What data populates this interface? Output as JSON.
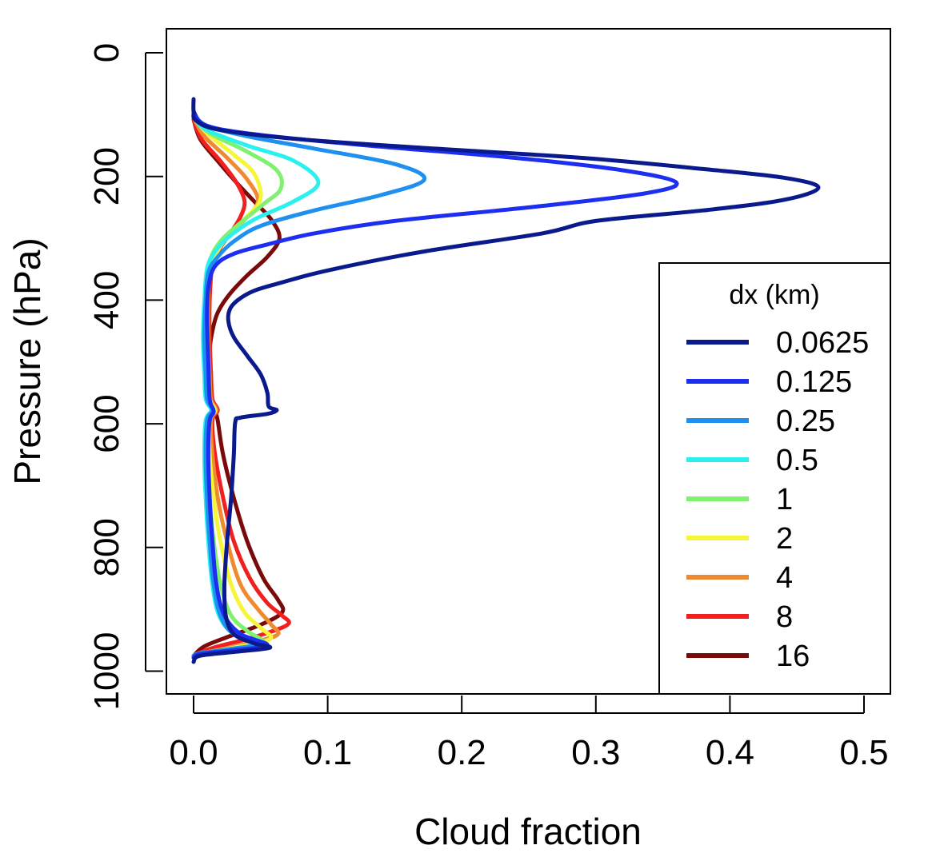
{
  "chart_data": {
    "type": "line",
    "title": "",
    "xlabel": "Cloud fraction",
    "ylabel": "Pressure (hPa)",
    "xlim": [
      -0.02,
      0.52
    ],
    "ylim": [
      1040,
      -5
    ],
    "y_reversed": true,
    "x_ticks": [
      0.0,
      0.1,
      0.2,
      0.3,
      0.4,
      0.5
    ],
    "x_tick_labels": [
      "0.0",
      "0.1",
      "0.2",
      "0.3",
      "0.4",
      "0.5"
    ],
    "y_ticks": [
      0,
      200,
      400,
      600,
      800,
      1000
    ],
    "y_tick_labels": [
      "0",
      "200",
      "400",
      "600",
      "800",
      "1000"
    ],
    "grid": false,
    "legend": {
      "title": "dx (km)",
      "placement": "right"
    },
    "series": [
      {
        "name": "0.0625",
        "color": "#0a1a8c",
        "points": [
          [
            0.0,
            75
          ],
          [
            0.0,
            95
          ],
          [
            0.002,
            110
          ],
          [
            0.02,
            125
          ],
          [
            0.08,
            140
          ],
          [
            0.18,
            155
          ],
          [
            0.29,
            170
          ],
          [
            0.38,
            188
          ],
          [
            0.44,
            202
          ],
          [
            0.466,
            218
          ],
          [
            0.44,
            238
          ],
          [
            0.38,
            255
          ],
          [
            0.3,
            272
          ],
          [
            0.26,
            292
          ],
          [
            0.17,
            322
          ],
          [
            0.1,
            352
          ],
          [
            0.065,
            372
          ],
          [
            0.045,
            385
          ],
          [
            0.033,
            400
          ],
          [
            0.027,
            415
          ],
          [
            0.026,
            435
          ],
          [
            0.03,
            460
          ],
          [
            0.04,
            490
          ],
          [
            0.05,
            520
          ],
          [
            0.055,
            550
          ],
          [
            0.056,
            572
          ],
          [
            0.062,
            578
          ],
          [
            0.055,
            584
          ],
          [
            0.035,
            590
          ],
          [
            0.031,
            598
          ],
          [
            0.03,
            650
          ],
          [
            0.028,
            720
          ],
          [
            0.025,
            790
          ],
          [
            0.023,
            860
          ],
          [
            0.024,
            910
          ],
          [
            0.03,
            940
          ],
          [
            0.045,
            955
          ],
          [
            0.057,
            962
          ],
          [
            0.035,
            968
          ],
          [
            0.005,
            975
          ],
          [
            0.0,
            985
          ]
        ]
      },
      {
        "name": "0.125",
        "color": "#1c2ef0",
        "points": [
          [
            0.0,
            95
          ],
          [
            0.01,
            118
          ],
          [
            0.05,
            133
          ],
          [
            0.13,
            150
          ],
          [
            0.24,
            170
          ],
          [
            0.32,
            190
          ],
          [
            0.36,
            210
          ],
          [
            0.335,
            228
          ],
          [
            0.25,
            250
          ],
          [
            0.15,
            272
          ],
          [
            0.09,
            292
          ],
          [
            0.055,
            310
          ],
          [
            0.03,
            325
          ],
          [
            0.016,
            345
          ],
          [
            0.011,
            380
          ],
          [
            0.01,
            430
          ],
          [
            0.011,
            500
          ],
          [
            0.012,
            560
          ],
          [
            0.015,
            580
          ],
          [
            0.012,
            595
          ],
          [
            0.011,
            650
          ],
          [
            0.012,
            720
          ],
          [
            0.014,
            790
          ],
          [
            0.017,
            860
          ],
          [
            0.023,
            910
          ],
          [
            0.035,
            940
          ],
          [
            0.055,
            958
          ],
          [
            0.03,
            966
          ],
          [
            0.005,
            972
          ],
          [
            0.0,
            978
          ]
        ]
      },
      {
        "name": "0.25",
        "color": "#1f8ff0",
        "points": [
          [
            0.0,
            100
          ],
          [
            0.01,
            118
          ],
          [
            0.04,
            135
          ],
          [
            0.09,
            155
          ],
          [
            0.15,
            180
          ],
          [
            0.172,
            205
          ],
          [
            0.14,
            230
          ],
          [
            0.09,
            255
          ],
          [
            0.05,
            280
          ],
          [
            0.03,
            305
          ],
          [
            0.018,
            330
          ],
          [
            0.011,
            355
          ],
          [
            0.009,
            400
          ],
          [
            0.008,
            460
          ],
          [
            0.009,
            520
          ],
          [
            0.01,
            560
          ],
          [
            0.014,
            578
          ],
          [
            0.01,
            595
          ],
          [
            0.009,
            650
          ],
          [
            0.01,
            720
          ],
          [
            0.012,
            790
          ],
          [
            0.015,
            860
          ],
          [
            0.02,
            910
          ],
          [
            0.03,
            940
          ],
          [
            0.05,
            955
          ],
          [
            0.025,
            965
          ],
          [
            0.003,
            972
          ],
          [
            0.0,
            978
          ]
        ]
      },
      {
        "name": "0.5",
        "color": "#2bf0f0",
        "points": [
          [
            0.0,
            105
          ],
          [
            0.01,
            125
          ],
          [
            0.04,
            150
          ],
          [
            0.075,
            175
          ],
          [
            0.093,
            210
          ],
          [
            0.075,
            240
          ],
          [
            0.045,
            270
          ],
          [
            0.025,
            300
          ],
          [
            0.015,
            325
          ],
          [
            0.01,
            350
          ],
          [
            0.008,
            400
          ],
          [
            0.007,
            460
          ],
          [
            0.008,
            520
          ],
          [
            0.009,
            560
          ],
          [
            0.013,
            578
          ],
          [
            0.009,
            595
          ],
          [
            0.008,
            650
          ],
          [
            0.009,
            720
          ],
          [
            0.011,
            790
          ],
          [
            0.014,
            860
          ],
          [
            0.019,
            910
          ],
          [
            0.03,
            940
          ],
          [
            0.05,
            955
          ],
          [
            0.025,
            965
          ],
          [
            0.003,
            972
          ],
          [
            0.0,
            978
          ]
        ]
      },
      {
        "name": "1",
        "color": "#80f070",
        "points": [
          [
            0.0,
            105
          ],
          [
            0.012,
            130
          ],
          [
            0.04,
            160
          ],
          [
            0.062,
            190
          ],
          [
            0.065,
            220
          ],
          [
            0.052,
            245
          ],
          [
            0.035,
            275
          ],
          [
            0.022,
            300
          ],
          [
            0.014,
            325
          ],
          [
            0.01,
            355
          ],
          [
            0.009,
            400
          ],
          [
            0.009,
            460
          ],
          [
            0.01,
            520
          ],
          [
            0.011,
            560
          ],
          [
            0.015,
            578
          ],
          [
            0.011,
            595
          ],
          [
            0.01,
            650
          ],
          [
            0.012,
            720
          ],
          [
            0.015,
            790
          ],
          [
            0.02,
            860
          ],
          [
            0.028,
            910
          ],
          [
            0.04,
            935
          ],
          [
            0.052,
            955
          ],
          [
            0.025,
            965
          ],
          [
            0.003,
            972
          ],
          [
            0.0,
            978
          ]
        ]
      },
      {
        "name": "2",
        "color": "#f5f53a",
        "points": [
          [
            0.0,
            105
          ],
          [
            0.01,
            130
          ],
          [
            0.03,
            165
          ],
          [
            0.045,
            195
          ],
          [
            0.05,
            235
          ],
          [
            0.04,
            265
          ],
          [
            0.028,
            290
          ],
          [
            0.018,
            320
          ],
          [
            0.012,
            350
          ],
          [
            0.01,
            400
          ],
          [
            0.01,
            460
          ],
          [
            0.011,
            520
          ],
          [
            0.012,
            560
          ],
          [
            0.016,
            578
          ],
          [
            0.012,
            595
          ],
          [
            0.012,
            650
          ],
          [
            0.015,
            720
          ],
          [
            0.02,
            790
          ],
          [
            0.028,
            860
          ],
          [
            0.038,
            905
          ],
          [
            0.05,
            930
          ],
          [
            0.057,
            948
          ],
          [
            0.03,
            962
          ],
          [
            0.004,
            972
          ],
          [
            0.0,
            978
          ]
        ]
      },
      {
        "name": "4",
        "color": "#f08a30",
        "points": [
          [
            0.0,
            105
          ],
          [
            0.008,
            135
          ],
          [
            0.025,
            170
          ],
          [
            0.04,
            205
          ],
          [
            0.048,
            240
          ],
          [
            0.038,
            270
          ],
          [
            0.026,
            295
          ],
          [
            0.017,
            320
          ],
          [
            0.012,
            350
          ],
          [
            0.011,
            400
          ],
          [
            0.011,
            460
          ],
          [
            0.012,
            520
          ],
          [
            0.013,
            560
          ],
          [
            0.017,
            578
          ],
          [
            0.013,
            595
          ],
          [
            0.014,
            650
          ],
          [
            0.018,
            720
          ],
          [
            0.025,
            790
          ],
          [
            0.035,
            860
          ],
          [
            0.048,
            900
          ],
          [
            0.058,
            925
          ],
          [
            0.062,
            942
          ],
          [
            0.035,
            958
          ],
          [
            0.005,
            972
          ],
          [
            0.0,
            978
          ]
        ]
      },
      {
        "name": "8",
        "color": "#f02020",
        "points": [
          [
            0.0,
            108
          ],
          [
            0.006,
            140
          ],
          [
            0.02,
            175
          ],
          [
            0.032,
            210
          ],
          [
            0.038,
            240
          ],
          [
            0.035,
            265
          ],
          [
            0.028,
            290
          ],
          [
            0.02,
            315
          ],
          [
            0.014,
            345
          ],
          [
            0.012,
            400
          ],
          [
            0.012,
            460
          ],
          [
            0.013,
            520
          ],
          [
            0.014,
            560
          ],
          [
            0.018,
            578
          ],
          [
            0.014,
            595
          ],
          [
            0.016,
            650
          ],
          [
            0.022,
            720
          ],
          [
            0.03,
            790
          ],
          [
            0.042,
            850
          ],
          [
            0.055,
            890
          ],
          [
            0.066,
            910
          ],
          [
            0.07,
            925
          ],
          [
            0.045,
            945
          ],
          [
            0.015,
            962
          ],
          [
            0.003,
            972
          ],
          [
            0.0,
            978
          ]
        ]
      },
      {
        "name": "16",
        "color": "#7a0a0a",
        "points": [
          [
            0.0,
            108
          ],
          [
            0.005,
            140
          ],
          [
            0.018,
            175
          ],
          [
            0.032,
            210
          ],
          [
            0.045,
            240
          ],
          [
            0.058,
            270
          ],
          [
            0.064,
            300
          ],
          [
            0.055,
            330
          ],
          [
            0.04,
            360
          ],
          [
            0.027,
            390
          ],
          [
            0.018,
            420
          ],
          [
            0.014,
            450
          ],
          [
            0.012,
            480
          ],
          [
            0.012,
            520
          ],
          [
            0.013,
            560
          ],
          [
            0.016,
            580
          ],
          [
            0.018,
            595
          ],
          [
            0.022,
            650
          ],
          [
            0.03,
            720
          ],
          [
            0.04,
            790
          ],
          [
            0.052,
            850
          ],
          [
            0.063,
            885
          ],
          [
            0.066,
            905
          ],
          [
            0.05,
            925
          ],
          [
            0.025,
            945
          ],
          [
            0.008,
            960
          ],
          [
            0.0,
            975
          ]
        ]
      }
    ]
  }
}
